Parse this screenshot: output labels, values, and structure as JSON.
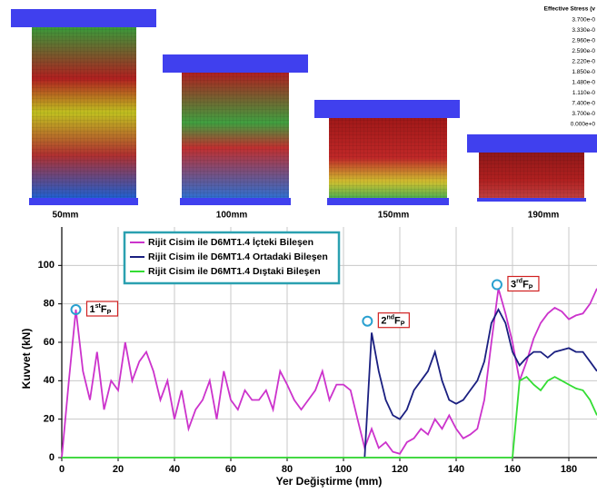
{
  "deformation_panels": [
    {
      "label": "50mm"
    },
    {
      "label": "100mm"
    },
    {
      "label": "150mm"
    },
    {
      "label": "190mm"
    }
  ],
  "stress_scale": {
    "title": "Effective Stress (v",
    "labels": [
      "3.700e-0",
      "3.330e-0",
      "2.960e-0",
      "2.590e-0",
      "2.220e-0",
      "1.850e-0",
      "1.480e-0",
      "1.110e-0",
      "7.400e-0",
      "3.700e-0",
      "0.000e+0"
    ]
  },
  "chart_data": {
    "type": "line",
    "x_label": "Yer Değiştirme (mm)",
    "y_label": "Kuvvet (kN)",
    "xlim": [
      0,
      190
    ],
    "ylim": [
      0,
      120
    ],
    "xticks": [
      0,
      20,
      40,
      60,
      80,
      100,
      120,
      140,
      160,
      180
    ],
    "yticks": [
      0,
      20,
      40,
      60,
      80,
      100
    ],
    "grid": true,
    "legend": "top-left",
    "x": [
      0,
      2.5,
      5,
      7.5,
      10,
      12.5,
      15,
      17.5,
      20,
      22.5,
      25,
      27.5,
      30,
      32.5,
      35,
      37.5,
      40,
      42.5,
      45,
      47.5,
      50,
      52.5,
      55,
      57.5,
      60,
      62.5,
      65,
      67.5,
      70,
      72.5,
      75,
      77.5,
      80,
      82.5,
      85,
      87.5,
      90,
      92.5,
      95,
      97.5,
      100,
      102.5,
      105,
      107.5,
      110,
      112.5,
      115,
      117.5,
      120,
      122.5,
      125,
      127.5,
      130,
      132.5,
      135,
      137.5,
      140,
      142.5,
      145,
      147.5,
      150,
      152.5,
      155,
      157.5,
      160,
      162.5,
      165,
      167.5,
      170,
      172.5,
      175,
      177.5,
      180,
      182.5,
      185,
      187.5,
      190
    ],
    "series": [
      {
        "name": "Rijit Cisim ile D6MT1.4 İçteki Bileşen",
        "color": "#cc33cc",
        "values": [
          0,
          40,
          77,
          45,
          30,
          55,
          25,
          40,
          35,
          60,
          40,
          50,
          55,
          45,
          30,
          40,
          20,
          35,
          15,
          25,
          30,
          40,
          20,
          45,
          30,
          25,
          35,
          30,
          30,
          35,
          25,
          45,
          38,
          30,
          25,
          30,
          35,
          45,
          30,
          38,
          38,
          35,
          20,
          5,
          15,
          5,
          8,
          3,
          2,
          8,
          10,
          15,
          12,
          20,
          15,
          22,
          15,
          10,
          12,
          15,
          30,
          60,
          88,
          75,
          60,
          40,
          50,
          62,
          70,
          75,
          78,
          76,
          72,
          74,
          75,
          80,
          88
        ]
      },
      {
        "name": "Rijit Cisim ile D6MT1.4 Ortadaki Bileşen",
        "color": "#1a1f80",
        "values": [
          null,
          null,
          null,
          null,
          null,
          null,
          null,
          null,
          null,
          null,
          null,
          null,
          null,
          null,
          null,
          null,
          null,
          null,
          null,
          null,
          null,
          null,
          null,
          null,
          null,
          null,
          null,
          null,
          null,
          null,
          null,
          null,
          null,
          null,
          null,
          null,
          null,
          null,
          null,
          null,
          null,
          null,
          null,
          0,
          65,
          45,
          30,
          22,
          20,
          25,
          35,
          40,
          45,
          55,
          40,
          30,
          28,
          30,
          35,
          40,
          50,
          70,
          77,
          70,
          55,
          48,
          52,
          55,
          55,
          52,
          55,
          56,
          57,
          55,
          55,
          50,
          45
        ]
      },
      {
        "name": "Rijit Cisim ile D6MT1.4 Dıştaki Bileşen",
        "color": "#33dd33",
        "values": [
          0,
          0,
          0,
          0,
          0,
          0,
          0,
          0,
          0,
          0,
          0,
          0,
          0,
          0,
          0,
          0,
          0,
          0,
          0,
          0,
          0,
          0,
          0,
          0,
          0,
          0,
          0,
          0,
          0,
          0,
          0,
          0,
          0,
          0,
          0,
          0,
          0,
          0,
          0,
          0,
          0,
          0,
          0,
          0,
          0,
          0,
          0,
          0,
          0,
          0,
          0,
          0,
          0,
          0,
          0,
          0,
          0,
          0,
          0,
          0,
          0,
          0,
          0,
          0,
          0,
          40,
          42,
          38,
          35,
          40,
          42,
          40,
          38,
          36,
          35,
          30,
          22
        ]
      }
    ],
    "annotations": [
      {
        "x": 5,
        "y": 77,
        "num": "1",
        "ord": "st",
        "f": "F",
        "p": "P"
      },
      {
        "x": 108.5,
        "y": 71,
        "num": "2",
        "ord": "nd",
        "f": "F",
        "p": "P"
      },
      {
        "x": 154.5,
        "y": 90,
        "num": "3",
        "ord": "rd",
        "f": "F",
        "p": "P"
      }
    ]
  }
}
